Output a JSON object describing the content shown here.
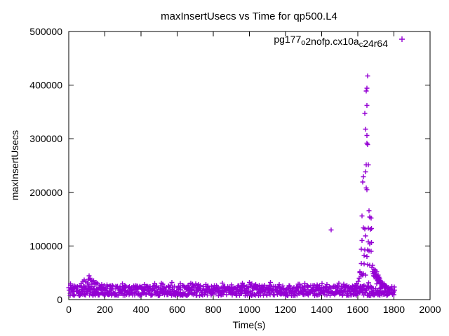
{
  "title": "maxInsertUsecs vs Time for qp500.L4",
  "legend": {
    "label": "pg177_o2nofp.cx10a_c24r64",
    "parts": [
      {
        "text": "pg177",
        "sub": false
      },
      {
        "text": "o",
        "sub": true
      },
      {
        "text": "2nofp.cx10a",
        "sub": false
      },
      {
        "text": "c",
        "sub": true
      },
      {
        "text": "24r64",
        "sub": false
      }
    ],
    "marker": "plus"
  },
  "colors": {
    "series": "#9400D3",
    "axis": "#000000",
    "background": "#ffffff"
  },
  "chart_data": {
    "type": "scatter",
    "title": "maxInsertUsecs vs Time for qp500.L4",
    "xlabel": "Time(s)",
    "ylabel": "maxInsertUsecs",
    "xlim": [
      0,
      2000
    ],
    "ylim": [
      0,
      500000
    ],
    "xticks": [
      0,
      200,
      400,
      600,
      800,
      1000,
      1200,
      1400,
      1600,
      1800,
      2000
    ],
    "yticks": [
      0,
      100000,
      200000,
      300000,
      400000,
      500000
    ],
    "grid": false,
    "legend_position": "top-right-inside",
    "series": [
      {
        "name": "pg177_o2nofp.cx10a_c24r64",
        "marker": "plus",
        "color": "#9400D3",
        "baseline_band": {
          "description": "dense noise band of per-second samples along the whole run",
          "x_start": 2,
          "x_end": 1802,
          "x_step": 4,
          "points_per_step": 2,
          "y_min": 7000,
          "y_max": 26000,
          "spike_chance": 0.05,
          "spike_extra_max": 6000
        },
        "feature_points": [
          [
            62,
            26000
          ],
          [
            70,
            30000
          ],
          [
            78,
            33500
          ],
          [
            86,
            36500
          ],
          [
            95,
            34000
          ],
          [
            102,
            31500
          ],
          [
            108,
            38000
          ],
          [
            113,
            44500
          ],
          [
            118,
            40000
          ],
          [
            124,
            36000
          ],
          [
            130,
            33000
          ],
          [
            137,
            35500
          ],
          [
            144,
            30000
          ],
          [
            152,
            28500
          ],
          [
            160,
            30500
          ],
          [
            170,
            27000
          ],
          [
            182,
            28000
          ],
          [
            196,
            26500
          ],
          [
            212,
            27500
          ],
          [
            228,
            25500
          ],
          [
            310,
            27000
          ],
          [
            368,
            26000
          ],
          [
            420,
            28000
          ],
          [
            475,
            26500
          ],
          [
            520,
            29000
          ],
          [
            565,
            26000
          ],
          [
            617,
            30000
          ],
          [
            660,
            27000
          ],
          [
            705,
            26500
          ],
          [
            760,
            28000
          ],
          [
            805,
            26000
          ],
          [
            850,
            30500
          ],
          [
            900,
            27500
          ],
          [
            955,
            26000
          ],
          [
            1005,
            28500
          ],
          [
            1055,
            27000
          ],
          [
            1110,
            26500
          ],
          [
            1165,
            28000
          ],
          [
            1220,
            26000
          ],
          [
            1270,
            29000
          ],
          [
            1320,
            26500
          ],
          [
            1375,
            27500
          ],
          [
            1430,
            28000
          ],
          [
            1490,
            27000
          ],
          [
            1540,
            26500
          ],
          [
            1452,
            130000
          ],
          [
            1578,
            24000
          ],
          [
            1586,
            26500
          ],
          [
            1594,
            30000
          ],
          [
            1601,
            34000
          ],
          [
            1608,
            40000
          ],
          [
            1612,
            50000
          ],
          [
            1617,
            44000
          ],
          [
            1622,
            47500
          ],
          [
            1627,
            46000
          ],
          [
            1654,
            417000
          ],
          [
            1650,
            394000
          ],
          [
            1646,
            389000
          ],
          [
            1650,
            362000
          ],
          [
            1639,
            347000
          ],
          [
            1643,
            318000
          ],
          [
            1650,
            306000
          ],
          [
            1650,
            292000
          ],
          [
            1655,
            289000
          ],
          [
            1646,
            251000
          ],
          [
            1658,
            251000
          ],
          [
            1643,
            238000
          ],
          [
            1631,
            229000
          ],
          [
            1627,
            219000
          ],
          [
            1646,
            208000
          ],
          [
            1651,
            205000
          ],
          [
            1662,
            166000
          ],
          [
            1623,
            156000
          ],
          [
            1666,
            154000
          ],
          [
            1674,
            152000
          ],
          [
            1631,
            134000
          ],
          [
            1639,
            132000
          ],
          [
            1658,
            133000
          ],
          [
            1670,
            131000
          ],
          [
            1675,
            132500
          ],
          [
            1643,
            119000
          ],
          [
            1623,
            110000
          ],
          [
            1658,
            108000
          ],
          [
            1666,
            104000
          ],
          [
            1675,
            106500
          ],
          [
            1619,
            94000
          ],
          [
            1639,
            93000
          ],
          [
            1654,
            92500
          ],
          [
            1662,
            91000
          ],
          [
            1674,
            90000
          ],
          [
            1635,
            82000
          ],
          [
            1650,
            80000
          ],
          [
            1619,
            67000
          ],
          [
            1635,
            66500
          ],
          [
            1654,
            65500
          ],
          [
            1666,
            64000
          ],
          [
            1682,
            64000
          ],
          [
            1612,
            52000
          ],
          [
            1631,
            48000
          ],
          [
            1643,
            45500
          ],
          [
            1678,
            60000
          ],
          [
            1682,
            52000
          ],
          [
            1686,
            48000
          ],
          [
            1688,
            44500
          ],
          [
            1690,
            57000
          ],
          [
            1692,
            50000
          ],
          [
            1694,
            43000
          ],
          [
            1697,
            55000
          ],
          [
            1699,
            47000
          ],
          [
            1701,
            38500
          ],
          [
            1703,
            44000
          ],
          [
            1705,
            52000
          ],
          [
            1707,
            41000
          ],
          [
            1709,
            35500
          ],
          [
            1711,
            38000
          ],
          [
            1713,
            46000
          ],
          [
            1715,
            36500
          ],
          [
            1717,
            42000
          ],
          [
            1719,
            34000
          ],
          [
            1721,
            40000
          ],
          [
            1723,
            31500
          ],
          [
            1725,
            36000
          ],
          [
            1727,
            30000
          ],
          [
            1729,
            33000
          ],
          [
            1733,
            28500
          ],
          [
            1737,
            31000
          ],
          [
            1741,
            27500
          ],
          [
            1746,
            29500
          ],
          [
            1752,
            26500
          ],
          [
            1760,
            25000
          ]
        ]
      }
    ]
  }
}
